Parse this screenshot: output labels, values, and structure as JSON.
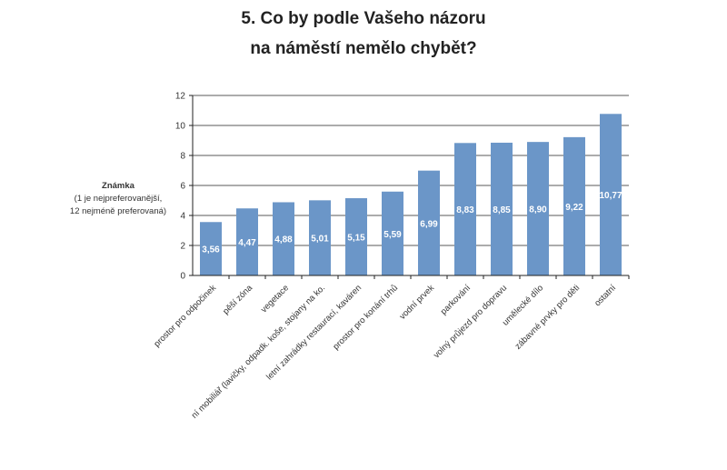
{
  "chart_data": {
    "type": "bar",
    "title_lines": [
      "5. Co by podle Vašeho názoru",
      "na náměstí nemělo chybět?"
    ],
    "ylabel_lines": [
      "Známka",
      "(1 je nejpreferovanější,",
      "12 nejméně preferovaná)"
    ],
    "xlabel": "",
    "ylim": [
      0,
      12
    ],
    "yticks": [
      0,
      2,
      4,
      6,
      8,
      10,
      12
    ],
    "grid": true,
    "bar_color": "#6b96c8",
    "categories": [
      "prostor pro odpočinek",
      "pěší zóna",
      "vegetace",
      "ní mobiliář (lavičky, odpadk. koše, stojany na ko.",
      "letní zahrádky restaurací, kaváren",
      "prostor pro konání trhů",
      "vodní prvek",
      "parkování",
      "volný průjezd pro dopravu",
      "umělecké dílo",
      "zábavné prvky pro děti",
      "ostatní"
    ],
    "values": [
      3.56,
      4.47,
      4.88,
      5.01,
      5.15,
      5.59,
      6.99,
      8.83,
      8.85,
      8.9,
      9.22,
      10.77
    ],
    "value_labels": [
      "3,56",
      "4,47",
      "4,88",
      "5,01",
      "5,15",
      "5,59",
      "6,99",
      "8,83",
      "8,85",
      "8,90",
      "9,22",
      "10,77"
    ]
  }
}
